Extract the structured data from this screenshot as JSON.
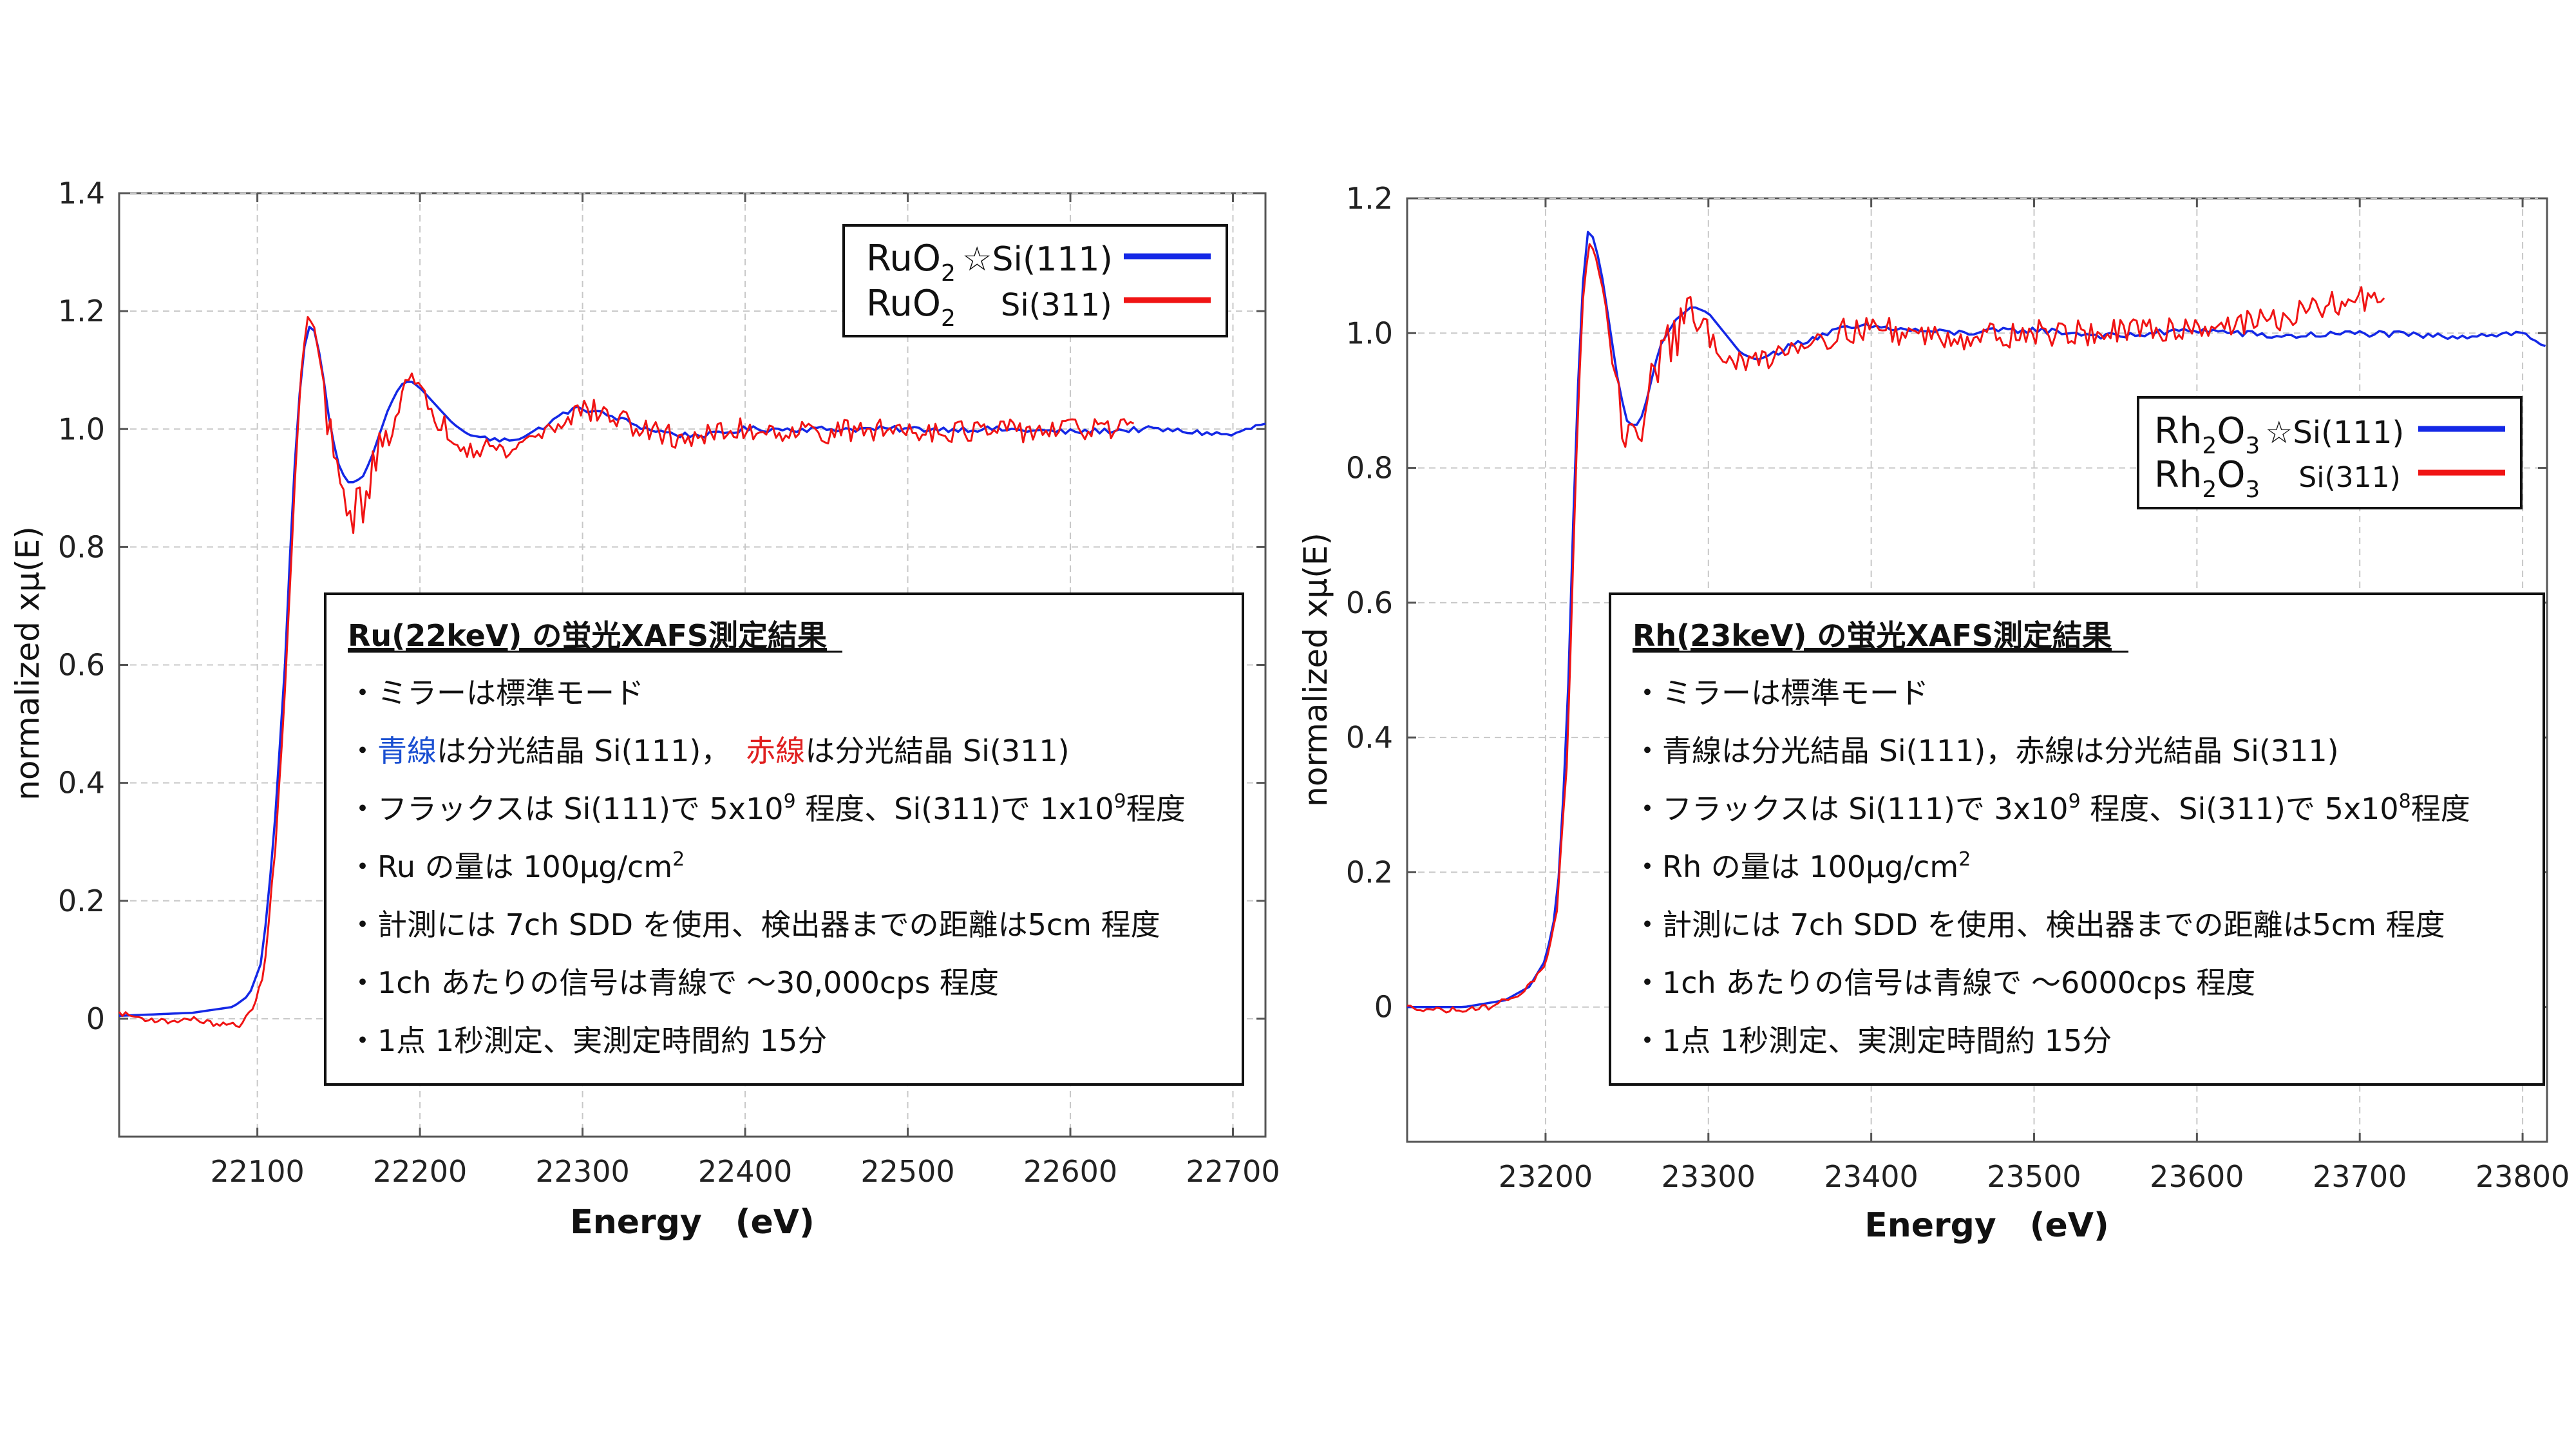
{
  "colors": {
    "blue": "#1428e6",
    "red": "#f01414",
    "note_blue": "#1a4fd1",
    "note_red": "#e02020"
  },
  "chart_data": [
    {
      "type": "line",
      "xlabel": "Energy　(eV)",
      "ylabel": "normalized xμ(E)",
      "xlim": [
        22015,
        22720
      ],
      "ylim": [
        -0.2,
        1.4
      ],
      "xticks": [
        "22100",
        "22200",
        "22300",
        "22400",
        "22500",
        "22600",
        "22700"
      ],
      "xtick_values": [
        22100,
        22200,
        22300,
        22400,
        22500,
        22600,
        22700
      ],
      "yticks": [
        "0",
        "0.2",
        "0.4",
        "0.6",
        "0.8",
        "1.0",
        "1.2",
        "1.4"
      ],
      "ytick_values": [
        0,
        0.2,
        0.4,
        0.6,
        0.8,
        1.0,
        1.2,
        1.4
      ],
      "grid": true,
      "legend": {
        "placement": "top-right",
        "entries": [
          {
            "main": "RuO",
            "sub": "2",
            "suffix": "☆Si(111)",
            "color": "blue"
          },
          {
            "main": "RuO",
            "sub": "2",
            "suffix": "Si(311)",
            "color": "red"
          }
        ]
      },
      "edge": 22117,
      "series": [
        {
          "color": "blue",
          "smooth": true,
          "x": [
            22015,
            22060,
            22085,
            22095,
            22103,
            22110,
            22117,
            22122,
            22127,
            22130,
            22133,
            22136,
            22140,
            22145,
            22150,
            22155,
            22160,
            22165,
            22170,
            22175,
            22180,
            22185,
            22190,
            22195,
            22200,
            22210,
            22220,
            22230,
            22240,
            22250,
            22260,
            22270,
            22280,
            22290,
            22300,
            22320,
            22340,
            22360,
            22380,
            22400,
            22450,
            22500,
            22550,
            22600,
            22650,
            22700,
            22720
          ],
          "y": [
            0.005,
            0.01,
            0.02,
            0.04,
            0.1,
            0.3,
            0.6,
            0.9,
            1.1,
            1.16,
            1.18,
            1.16,
            1.1,
            1.0,
            0.94,
            0.91,
            0.91,
            0.92,
            0.95,
            0.99,
            1.03,
            1.06,
            1.08,
            1.08,
            1.07,
            1.04,
            1.01,
            0.99,
            0.985,
            0.98,
            0.985,
            0.995,
            1.01,
            1.03,
            1.035,
            1.02,
            1.0,
            0.99,
            0.99,
            1.0,
            1.0,
            1.0,
            1.0,
            0.995,
            1.0,
            0.99,
            1.01
          ]
        },
        {
          "color": "red",
          "smooth": false,
          "noisy": true,
          "x": [
            22015,
            22030,
            22045,
            22060,
            22075,
            22090,
            22098,
            22104,
            22110,
            22117,
            22122,
            22127,
            22131,
            22135,
            22140,
            22145,
            22150,
            22155,
            22160,
            22165,
            22170,
            22175,
            22180,
            22185,
            22190,
            22195,
            22200,
            22210,
            22220,
            22230,
            22240,
            22250,
            22260,
            22270,
            22280,
            22290,
            22300,
            22320,
            22340,
            22360,
            22380,
            22400,
            22450,
            22500,
            22550,
            22600,
            22640
          ],
          "y": [
            0.01,
            0.0,
            -0.005,
            0.0,
            -0.01,
            -0.01,
            0.02,
            0.08,
            0.25,
            0.55,
            0.85,
            1.1,
            1.19,
            1.17,
            1.09,
            0.98,
            0.9,
            0.87,
            0.86,
            0.88,
            0.92,
            0.96,
            1.0,
            1.04,
            1.07,
            1.08,
            1.06,
            1.02,
            0.99,
            0.97,
            0.975,
            0.96,
            0.97,
            0.99,
            1.0,
            1.02,
            1.035,
            1.02,
            0.995,
            0.985,
            0.99,
            1.0,
            0.995,
            1.0,
            0.995,
            1.0,
            1.0
          ]
        }
      ],
      "notes": {
        "title": "Ru(22keV) の蛍光XAFS測定結果",
        "line1": "・ミラーは標準モード",
        "line2": {
          "a": "・",
          "b": "青線",
          "c": "は分光結晶 Si(111)，",
          "d": "赤線",
          "e": "は分光結晶 Si(311)"
        },
        "line3": {
          "a": "・フラックスは Si(111)で 5x10",
          "b": "9",
          "c": " 程度、Si(311)で 1x10",
          "d": "9",
          "e": "程度"
        },
        "line4": {
          "a": "・Ru の量は 100μg/cm",
          "b": "2"
        },
        "line5": "・計測には 7ch SDD を使用、検出器までの距離は5cm 程度",
        "line6": "・1ch あたりの信号は青線で ～30,000cps 程度",
        "line7": "・1点 1秒測定、実測定時間約 15分"
      }
    },
    {
      "type": "line",
      "xlabel": "Energy　(eV)",
      "ylabel": "normalized xμ(E)",
      "xlim": [
        23115,
        23815
      ],
      "ylim": [
        -0.2,
        1.2
      ],
      "xticks": [
        "23200",
        "23300",
        "23400",
        "23500",
        "23600",
        "23700",
        "23800"
      ],
      "xtick_values": [
        23200,
        23300,
        23400,
        23500,
        23600,
        23700,
        23800
      ],
      "yticks": [
        "0",
        "0.2",
        "0.4",
        "0.6",
        "0.8",
        "1.0",
        "1.2"
      ],
      "ytick_values": [
        0,
        0.2,
        0.4,
        0.6,
        0.8,
        1.0,
        1.2
      ],
      "grid": true,
      "legend": {
        "placement": "top-right",
        "entries": [
          {
            "main": "Rh",
            "sub": "2",
            "mid": "O",
            "sub2": "3",
            "suffix": "☆Si(111)",
            "color": "blue"
          },
          {
            "main": "Rh",
            "sub": "2",
            "mid": "O",
            "sub2": "3",
            "suffix": "Si(311)",
            "color": "red"
          }
        ]
      },
      "edge": 23217,
      "series": [
        {
          "color": "blue",
          "smooth": true,
          "x": [
            23115,
            23150,
            23175,
            23190,
            23200,
            23207,
            23213,
            23218,
            23222,
            23226,
            23230,
            23235,
            23240,
            23245,
            23250,
            23255,
            23260,
            23265,
            23270,
            23280,
            23290,
            23300,
            23310,
            23320,
            23330,
            23340,
            23350,
            23360,
            23380,
            23400,
            23420,
            23450,
            23500,
            23550,
            23600,
            23650,
            23700,
            23750,
            23800,
            23815
          ],
          "y": [
            0.0,
            0.0,
            0.01,
            0.03,
            0.07,
            0.15,
            0.4,
            0.8,
            1.05,
            1.15,
            1.14,
            1.08,
            1.0,
            0.92,
            0.87,
            0.86,
            0.88,
            0.93,
            0.98,
            1.02,
            1.04,
            1.03,
            1.0,
            0.97,
            0.96,
            0.97,
            0.98,
            0.99,
            1.005,
            1.01,
            1.005,
            1.0,
            1.005,
            0.995,
            1.005,
            0.995,
            1.0,
            0.995,
            1.0,
            0.98
          ]
        },
        {
          "color": "red",
          "smooth": false,
          "noisy": true,
          "x": [
            23115,
            23140,
            23165,
            23185,
            23200,
            23207,
            23213,
            23218,
            23222,
            23226,
            23230,
            23235,
            23240,
            23245,
            23250,
            23255,
            23260,
            23265,
            23270,
            23280,
            23290,
            23300,
            23310,
            23320,
            23330,
            23340,
            23350,
            23360,
            23380,
            23400,
            23420,
            23450,
            23500,
            23550,
            23600,
            23650,
            23680,
            23700,
            23715
          ],
          "y": [
            0.0,
            -0.005,
            0.0,
            0.02,
            0.06,
            0.14,
            0.35,
            0.75,
            1.02,
            1.12,
            1.13,
            1.07,
            0.98,
            0.9,
            0.85,
            0.84,
            0.87,
            0.92,
            0.97,
            1.0,
            1.02,
            1.0,
            0.97,
            0.95,
            0.96,
            0.97,
            0.98,
            0.99,
            1.0,
            1.01,
            1.0,
            0.995,
            1.0,
            1.0,
            1.01,
            1.02,
            1.04,
            1.05,
            1.06
          ]
        }
      ],
      "notes": {
        "title": "Rh(23keV) の蛍光XAFS測定結果",
        "line1": "・ミラーは標準モード",
        "line2": {
          "a": "・青線は分光結晶 Si(111)，赤線は分光結晶 Si(311)"
        },
        "line3": {
          "a": "・フラックスは Si(111)で 3x10",
          "b": "9",
          "c": " 程度、Si(311)で 5x10",
          "d": "8",
          "e": "程度"
        },
        "line4": {
          "a": "・Rh の量は 100μg/cm",
          "b": "2"
        },
        "line5": "・計測には 7ch SDD を使用、検出器までの距離は5cm 程度",
        "line6": "・1ch あたりの信号は青線で ～6000cps 程度",
        "line7": "・1点 1秒測定、実測定時間約 15分"
      }
    }
  ]
}
